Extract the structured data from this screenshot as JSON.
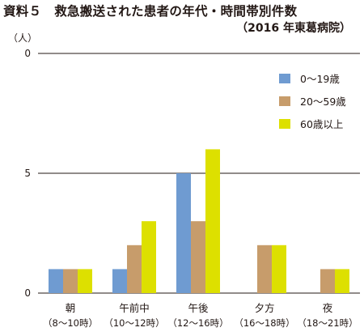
{
  "title": "資料５　救急搬送された患者の年代・時間帯別件数",
  "subtitle": "（2016 年東葛病院）",
  "unit_label": "（人）",
  "colors": {
    "series_0_19": "#6f9bd1",
    "series_20_59": "#c79c6b",
    "series_60_plus": "#dde000",
    "axis": "#231815"
  },
  "chart_data": {
    "type": "bar",
    "title": "資料５　救急搬送された患者の年代・時間帯別件数",
    "subtitle": "（2016 年東葛病院）",
    "ylabel": "（人）",
    "y_tick_labels": [
      "0",
      "5",
      "0"
    ],
    "ylim": [
      0,
      10
    ],
    "grid": true,
    "legend_position": "top-right",
    "categories": [
      {
        "name": "朝",
        "range": "（8～10時）"
      },
      {
        "name": "午前中",
        "range": "（10～12時）"
      },
      {
        "name": "午後",
        "range": "（12～16時）"
      },
      {
        "name": "夕方",
        "range": "（16～18時）"
      },
      {
        "name": "夜",
        "range": "（18～21時）"
      }
    ],
    "series": [
      {
        "name": "0～19歳",
        "color": "#6f9bd1",
        "values": [
          1,
          1,
          5,
          0,
          0
        ]
      },
      {
        "name": "20～59歳",
        "color": "#c79c6b",
        "values": [
          1,
          2,
          3,
          2,
          1
        ]
      },
      {
        "name": "60歳以上",
        "color": "#dde000",
        "values": [
          1,
          3,
          6,
          2,
          1
        ]
      }
    ]
  }
}
